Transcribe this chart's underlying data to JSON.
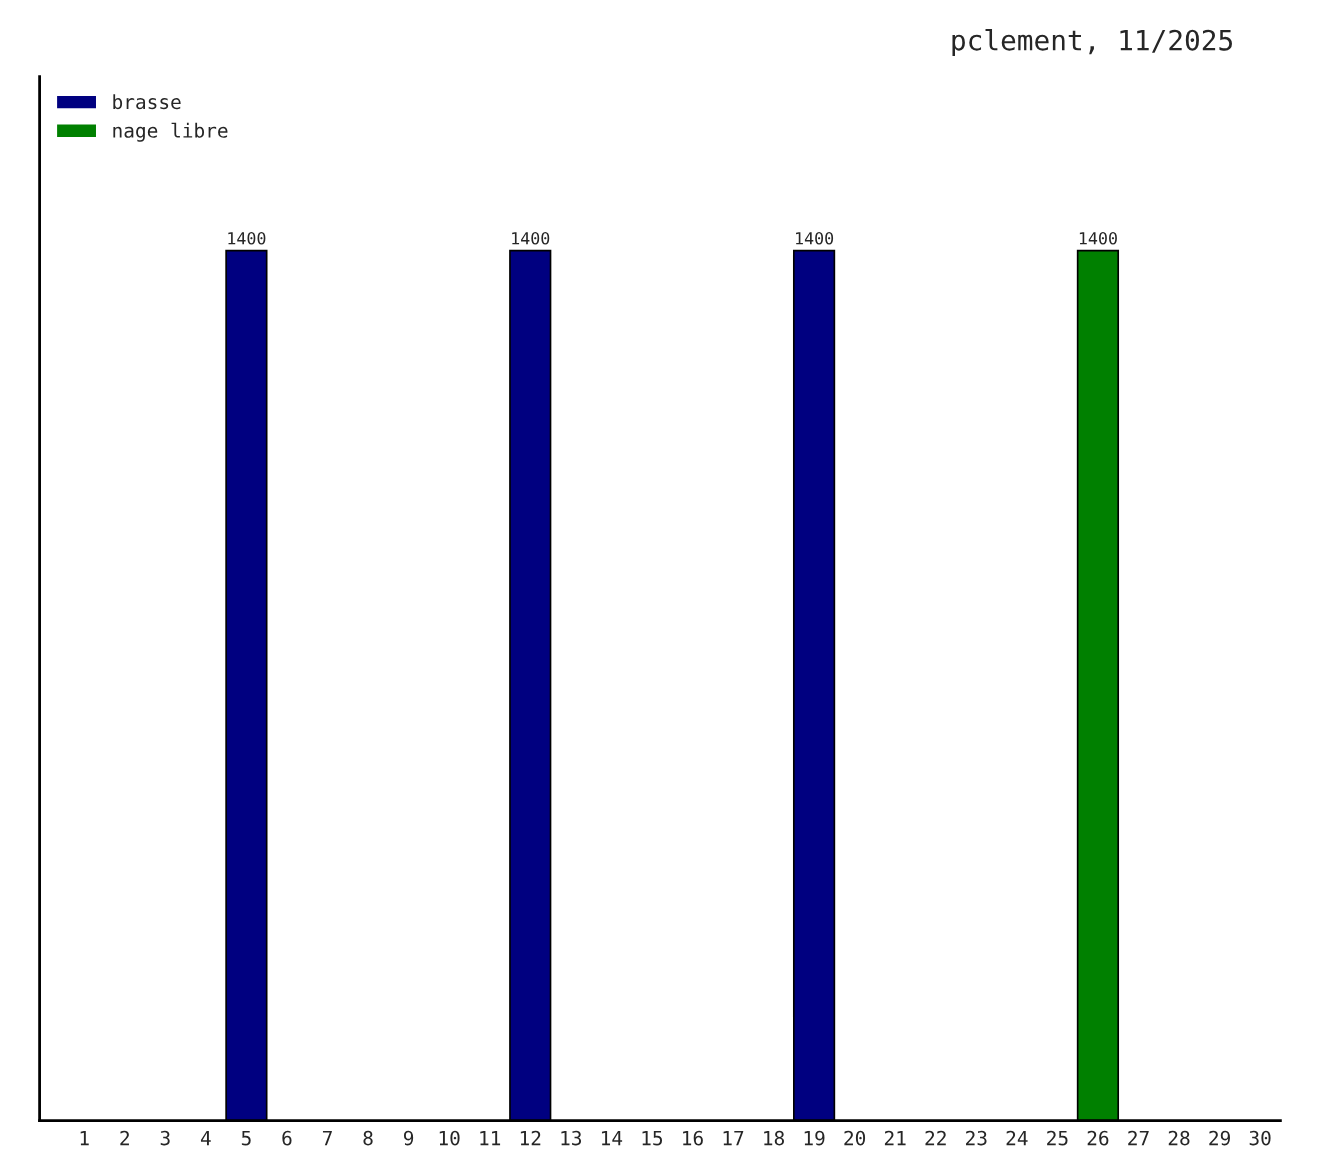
{
  "chart_data": {
    "type": "bar",
    "title": "pclement, 11/2025",
    "categories": [
      "1",
      "2",
      "3",
      "4",
      "5",
      "6",
      "7",
      "8",
      "9",
      "10",
      "11",
      "12",
      "13",
      "14",
      "15",
      "16",
      "17",
      "18",
      "19",
      "20",
      "21",
      "22",
      "23",
      "24",
      "25",
      "26",
      "27",
      "28",
      "29",
      "30"
    ],
    "series": [
      {
        "name": "brasse",
        "color": "#000080",
        "values": [
          null,
          null,
          null,
          null,
          1400,
          null,
          null,
          null,
          null,
          null,
          null,
          1400,
          null,
          null,
          null,
          null,
          null,
          null,
          1400,
          null,
          null,
          null,
          null,
          null,
          null,
          null,
          null,
          null,
          null,
          null
        ]
      },
      {
        "name": "nage libre",
        "color": "#008000",
        "values": [
          null,
          null,
          null,
          null,
          null,
          null,
          null,
          null,
          null,
          null,
          null,
          null,
          null,
          null,
          null,
          null,
          null,
          null,
          null,
          null,
          null,
          null,
          null,
          null,
          null,
          1400,
          null,
          null,
          null,
          null
        ]
      }
    ],
    "data_labels": true,
    "legend": "top left",
    "grid": false,
    "tick_labels": "x"
  }
}
